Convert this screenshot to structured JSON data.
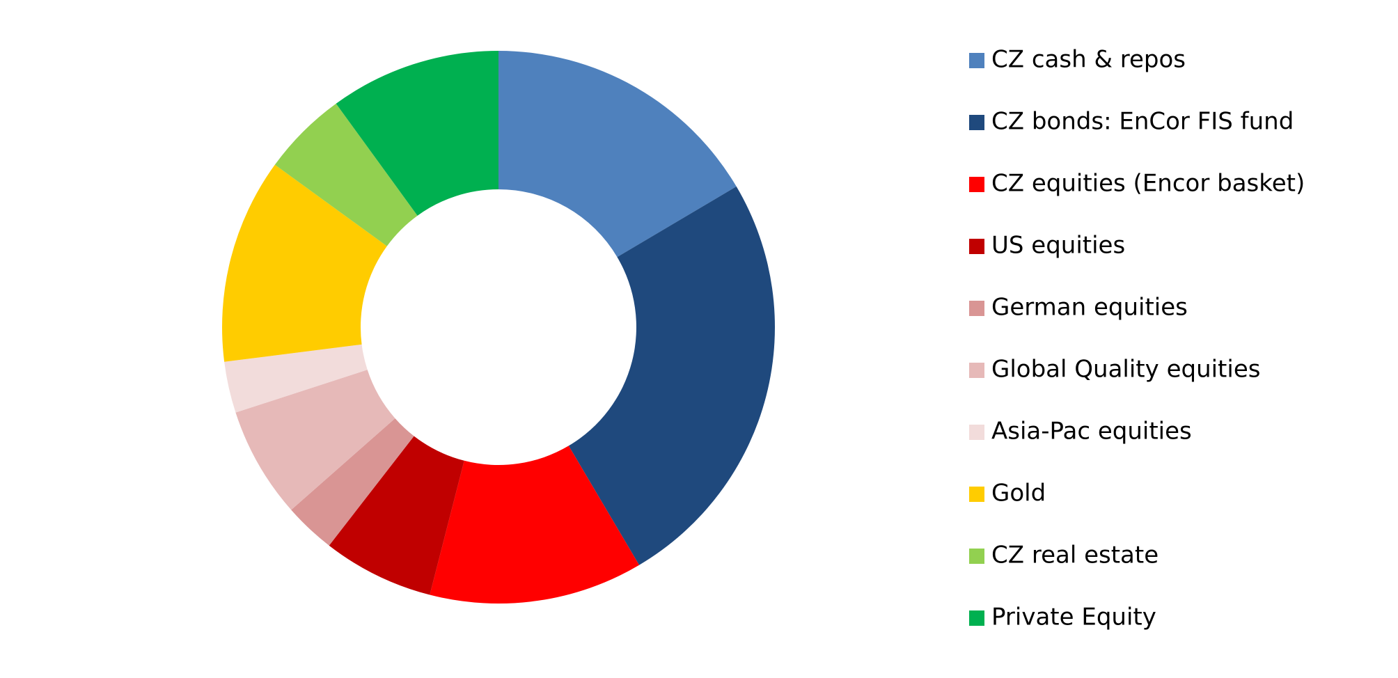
{
  "chart_data": {
    "type": "donut",
    "categories": [
      "CZ cash & repos",
      "CZ bonds: EnCor FIS fund",
      "CZ equities (Encor basket)",
      "US equities",
      "German equities",
      "Global Quality equities",
      "Asia-Pac equities",
      "Gold",
      "CZ real estate",
      "Private Equity"
    ],
    "values": [
      16.5,
      25,
      12.5,
      6.5,
      3,
      6.5,
      3,
      12,
      5,
      10
    ],
    "colors": [
      "#4f81bd",
      "#1f497d",
      "#ff0000",
      "#c00000",
      "#d99594",
      "#e6b9b8",
      "#f2dcdb",
      "#ffcc00",
      "#92d050",
      "#00b050"
    ],
    "legend": "right"
  }
}
